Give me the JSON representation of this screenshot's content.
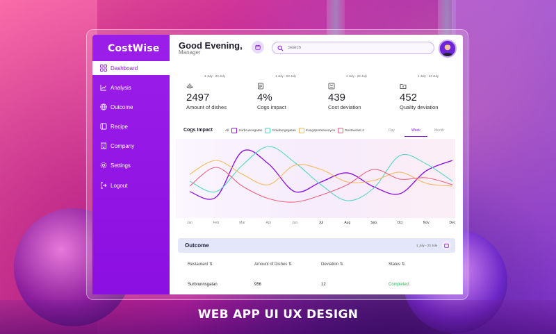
{
  "app": {
    "logo": "CostWise"
  },
  "sidebar": {
    "items": [
      {
        "label": "Dashboard",
        "icon": "grid-icon",
        "active": true
      },
      {
        "label": "Analysis",
        "icon": "chart-icon"
      },
      {
        "label": "Outcome",
        "icon": "globe-icon"
      },
      {
        "label": "Recipe",
        "icon": "book-icon"
      },
      {
        "label": "Company",
        "icon": "building-icon"
      },
      {
        "label": "Settings",
        "icon": "gear-icon"
      },
      {
        "label": "Logout",
        "icon": "logout-icon"
      }
    ]
  },
  "header": {
    "greeting": "Good Evening,",
    "role": "Manager",
    "search_placeholder": "Search"
  },
  "cards": [
    {
      "date": "1 July - 23 July",
      "value": "2497",
      "label": "Amount of dishes",
      "icon": "dish-icon",
      "bg": "#fde0e4",
      "badge": "#f24c6a"
    },
    {
      "date": "1 July - 23 July",
      "value": "4%",
      "label": "Cogs impact",
      "icon": "ledger-icon",
      "bg": "#ecd5fb",
      "badge": "#8d14e3"
    },
    {
      "date": "1 July - 23 July",
      "value": "439",
      "label": "Cost deviation",
      "icon": "deviation-icon",
      "bg": "#f3f6fc",
      "badge": "#29b25a"
    },
    {
      "date": "1 July - 23 July",
      "value": "452",
      "label": "Quality deviation",
      "icon": "folder-icon",
      "bg": "#ebd2fb",
      "badge": "#8d14e3"
    }
  ],
  "chart": {
    "title": "Cogs Impact",
    "filter_all": "All",
    "legend": [
      {
        "name": "Surbrunnsgatan",
        "color": "#8d14e3"
      },
      {
        "name": "Gotebergsgatan",
        "color": "#55d6c2"
      },
      {
        "name": "Kungsportsavenyen",
        "color": "#f5b860"
      },
      {
        "name": "Restaurant 4",
        "color": "#f2607e"
      }
    ],
    "periods": [
      "Day",
      "Week",
      "Month"
    ],
    "active_period": "Week"
  },
  "chart_data": {
    "type": "line",
    "title": "Cogs Impact",
    "x": [
      "Jan",
      "Feb",
      "Mar",
      "Apr",
      "Jun",
      "Jul",
      "Aug",
      "Sep",
      "Oct",
      "Nov",
      "Dec"
    ],
    "ylim": [
      0,
      100
    ],
    "series": [
      {
        "name": "Surbrunnsgatan",
        "values": [
          30,
          22,
          88,
          70,
          30,
          44,
          57,
          37,
          27,
          60,
          75
        ]
      },
      {
        "name": "Gotebergsgatan",
        "values": [
          45,
          30,
          68,
          95,
          72,
          40,
          17,
          35,
          82,
          70,
          45
        ]
      },
      {
        "name": "Kungsportsavenyen",
        "values": [
          55,
          75,
          55,
          40,
          68,
          62,
          44,
          46,
          58,
          42,
          38
        ]
      },
      {
        "name": "Restaurant 4",
        "values": [
          38,
          65,
          38,
          20,
          15,
          25,
          40,
          62,
          48,
          50,
          40
        ]
      }
    ]
  },
  "outcome": {
    "title": "Outcome",
    "date": "1 July - 23 July",
    "columns": [
      "Restaurant",
      "Amount of Dishes",
      "Deviation",
      "Status"
    ],
    "rows": [
      [
        "Surbrunnsgatan",
        "956",
        "12",
        "Completed"
      ]
    ],
    "status_color": "#27b24f"
  },
  "banner": "WEB APP UI UX DESIGN"
}
